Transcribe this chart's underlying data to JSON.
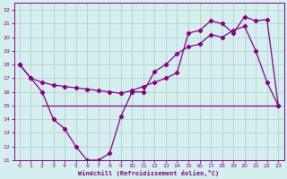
{
  "xlabel": "Windchill (Refroidissement éolien,°C)",
  "xlim": [
    -0.5,
    23.5
  ],
  "ylim": [
    11,
    22.5
  ],
  "yticks": [
    11,
    12,
    13,
    14,
    15,
    16,
    17,
    18,
    19,
    20,
    21,
    22
  ],
  "xticks": [
    0,
    1,
    2,
    3,
    4,
    5,
    6,
    7,
    8,
    9,
    10,
    11,
    12,
    13,
    14,
    15,
    16,
    17,
    18,
    19,
    20,
    21,
    22,
    23
  ],
  "bg_color": "#d5eeee",
  "line_color": "#880088",
  "grid_color": "#aacccc",
  "line1_x": [
    0,
    1,
    2,
    3,
    4,
    5,
    6,
    7,
    8,
    9,
    10,
    11,
    12,
    13,
    14,
    15,
    16,
    17,
    18,
    19,
    20,
    21,
    22,
    23
  ],
  "line1_y": [
    18,
    17,
    16,
    14,
    13.3,
    12,
    11,
    11,
    11.5,
    14.2,
    16,
    16,
    17.5,
    18,
    18.8,
    19.3,
    19.5,
    20.2,
    20,
    20.5,
    20.8,
    19,
    16.7,
    15
  ],
  "line2_x": [
    0,
    1,
    2,
    3,
    4,
    5,
    6,
    7,
    8,
    9,
    10,
    11,
    12,
    13,
    14,
    15,
    16,
    17,
    18,
    19,
    20,
    21,
    22,
    23
  ],
  "line2_y": [
    18,
    17,
    16.7,
    16.5,
    16.4,
    16.3,
    16.2,
    16.1,
    16.0,
    15.9,
    16.1,
    16.4,
    16.7,
    17.0,
    17.4,
    20.3,
    20.5,
    21.2,
    21.0,
    20.3,
    21.5,
    21.2,
    21.3,
    15
  ],
  "line3_x": [
    2,
    23
  ],
  "line3_y": [
    15,
    15
  ],
  "marker": "D",
  "markersize": 2.2
}
